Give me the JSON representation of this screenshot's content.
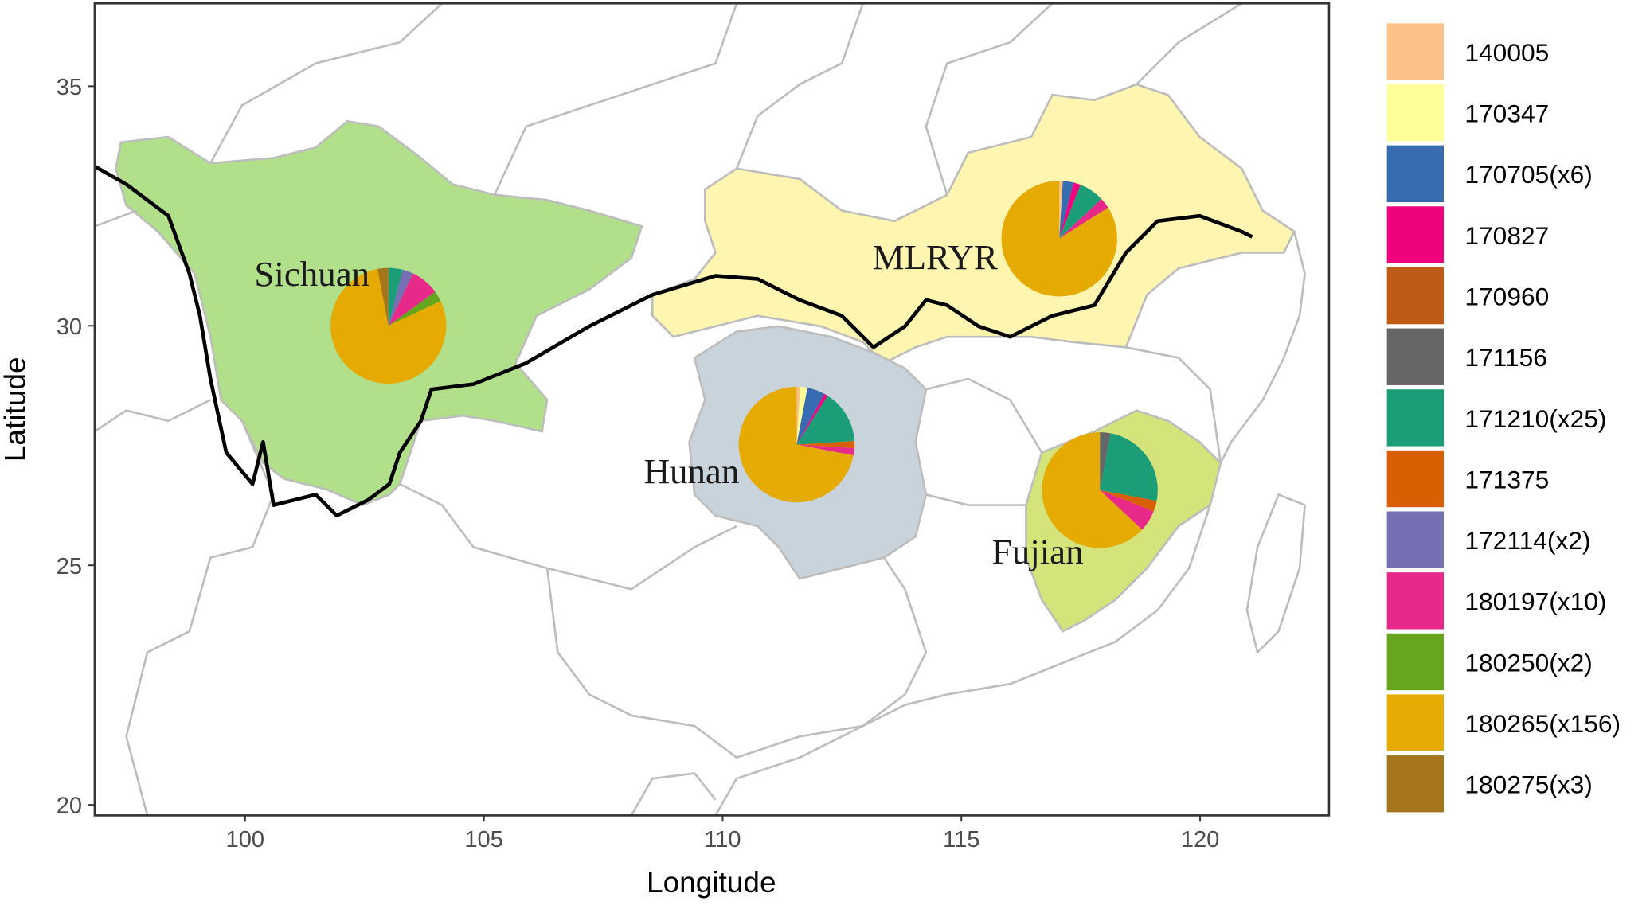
{
  "chart_data": {
    "type": "pie-map",
    "xlabel": "Longitude",
    "ylabel": "Latitude",
    "xlim": [
      96.85,
      122.7
    ],
    "ylim": [
      19.78,
      36.73
    ],
    "xticks": [
      100,
      105,
      110,
      115,
      120
    ],
    "yticks": [
      20,
      25,
      30,
      35
    ],
    "categories": [
      "140005",
      "170347",
      "170705(x6)",
      "170827",
      "170960",
      "171156",
      "171210(x25)",
      "171375",
      "172114(x2)",
      "180197(x10)",
      "180250(x2)",
      "180265(x156)",
      "180275(x3)"
    ],
    "colors": [
      "#fdc086",
      "#ffff99",
      "#386cb0",
      "#f0027f",
      "#bf5b17",
      "#666666",
      "#1b9e77",
      "#d95f02",
      "#7570b3",
      "#e7298a",
      "#66a61e",
      "#e6ab02",
      "#a6761d"
    ],
    "regions": [
      {
        "label": "Sichuan",
        "lon": 103.0,
        "lat": 30.0,
        "label_lon": 101.4,
        "label_lat": 31.1,
        "values": [
          0,
          0,
          0,
          0,
          0,
          0,
          4,
          0,
          3,
          8,
          3,
          79,
          3
        ]
      },
      {
        "label": "MLRYR",
        "lon": 117.05,
        "lat": 31.82,
        "label_lon": 114.45,
        "label_lat": 31.45,
        "values": [
          1,
          0,
          3,
          2,
          0,
          0,
          7,
          0,
          0,
          3,
          0,
          84,
          0
        ]
      },
      {
        "label": "Hunan",
        "lon": 111.55,
        "lat": 27.52,
        "label_lon": 109.35,
        "label_lat": 26.98,
        "values": [
          1,
          2,
          5,
          1,
          0,
          0,
          15,
          2,
          0,
          2,
          0,
          72,
          0
        ]
      },
      {
        "label": "Fujian",
        "lon": 117.9,
        "lat": 26.57,
        "label_lon": 116.6,
        "label_lat": 25.3,
        "values": [
          0,
          0,
          0,
          0,
          0,
          3,
          25,
          3,
          0,
          6,
          0,
          63,
          0
        ]
      }
    ]
  }
}
